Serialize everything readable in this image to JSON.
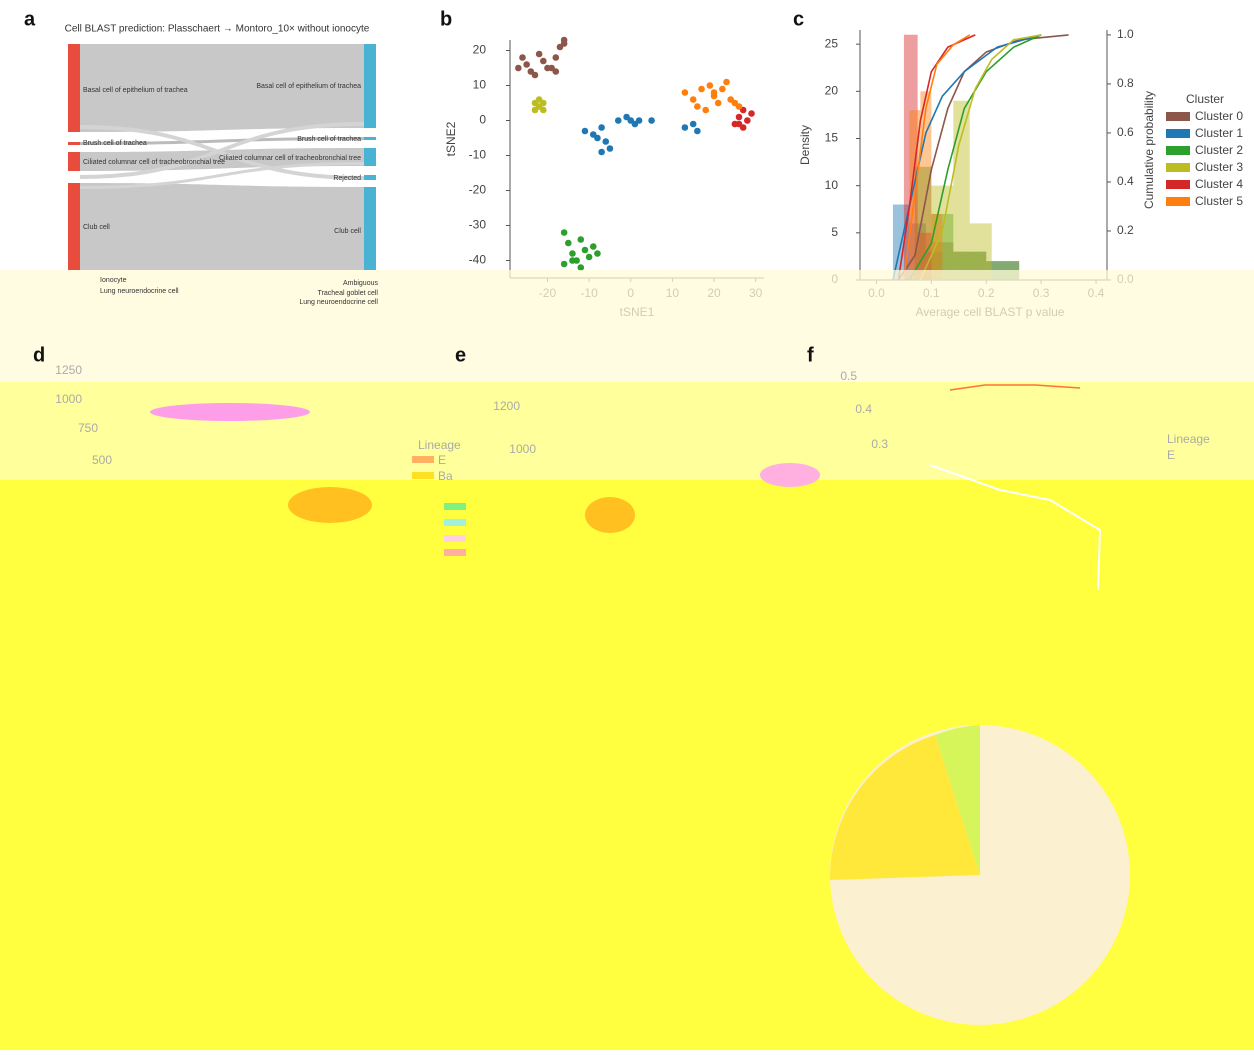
{
  "figure": {
    "panel_labels": [
      "a",
      "b",
      "c",
      "d",
      "e",
      "f"
    ]
  },
  "sankey": {
    "title": "Cell BLAST prediction: Plasschaert → Montoro_10× without ionocyte",
    "left_nodes": [
      "Basal cell of epithelium of trachea",
      "Brush cell of trachea",
      "Ciliated columnar cell of tracheobronchial tree",
      "Club cell"
    ],
    "right_nodes": [
      "Basal cell of epithelium of trachea",
      "Brush cell of trachea",
      "Ciliated columnar cell of tracheobronchial tree",
      "Rejected",
      "Club cell"
    ],
    "left_extra": [
      "Ionocyte",
      "Lung neuroendocrine cell"
    ],
    "right_extra": [
      "Ambiguous",
      "Tracheal goblet cell",
      "Lung neuroendocrine cell"
    ]
  },
  "chart_data": [
    {
      "type": "scatter",
      "xlabel": "tSNE1",
      "ylabel": "tSNE2",
      "xlim": [
        -29,
        32
      ],
      "ylim": [
        -45,
        23
      ],
      "xticks": [
        -20,
        -10,
        0,
        10,
        20,
        30
      ],
      "yticks": [
        -40,
        -30,
        -20,
        -10,
        0,
        10,
        20
      ],
      "series": [
        {
          "color": "#8c564b",
          "x": [
            -27,
            -25,
            -24,
            -26,
            -22,
            -21,
            -19,
            -18,
            -17,
            -16,
            -16,
            -20,
            -23,
            -18
          ],
          "values": [
            15,
            16,
            14,
            18,
            19,
            17,
            15,
            14,
            21,
            23,
            22,
            15,
            13,
            18
          ]
        },
        {
          "color": "#1f77b4",
          "x": [
            -11,
            -9,
            -7,
            -6,
            -5,
            -7,
            -8,
            -3,
            -1,
            0,
            2,
            1,
            13,
            15,
            16,
            5
          ],
          "values": [
            -3,
            -4,
            -2,
            -6,
            -8,
            -9,
            -5,
            0,
            1,
            0,
            0,
            -1,
            -2,
            -1,
            -3,
            0
          ]
        },
        {
          "color": "#2ca02c",
          "x": [
            -16,
            -15,
            -14,
            -13,
            -12,
            -11,
            -10,
            -9,
            -8,
            -16,
            -12,
            -14
          ],
          "values": [
            -32,
            -35,
            -38,
            -40,
            -42,
            -37,
            -39,
            -36,
            -38,
            -41,
            -34,
            -40
          ]
        },
        {
          "color": "#bcbd22",
          "x": [
            -23,
            -22,
            -21,
            -22,
            -23,
            -21
          ],
          "values": [
            5,
            4,
            3,
            6,
            3,
            5
          ]
        },
        {
          "color": "#d62728",
          "x": [
            25,
            26,
            27,
            28,
            29,
            27,
            26
          ],
          "values": [
            -1,
            1,
            -2,
            0,
            2,
            3,
            -1
          ]
        },
        {
          "color": "#ff7f0e",
          "x": [
            13,
            15,
            17,
            19,
            20,
            21,
            22,
            23,
            24,
            25,
            18,
            16,
            20,
            26
          ],
          "values": [
            8,
            6,
            9,
            10,
            7,
            5,
            9,
            11,
            6,
            5,
            3,
            4,
            8,
            4
          ]
        }
      ]
    },
    {
      "type": "hist_cdf",
      "xlabel": "Average cell BLAST p value",
      "ylabel": "Density",
      "y2label": "Cumulative probability",
      "legend_title": "Cluster",
      "xlim": [
        -0.03,
        0.42
      ],
      "ylim": [
        0,
        26.5
      ],
      "y2lim": [
        0,
        1.02
      ],
      "xticks": [
        {
          "value": 0,
          "label": "0.0"
        },
        0.1,
        0.2,
        0.3,
        0.4
      ],
      "yticks": [
        0,
        5,
        10,
        15,
        20,
        25
      ],
      "y2ticks": [
        {
          "value": 0,
          "label": "0.0"
        },
        0.2,
        0.4,
        0.6,
        0.8,
        {
          "value": 1,
          "label": "1.0"
        }
      ],
      "series": [
        {
          "name": "Cluster 0",
          "color": "#8c564b",
          "x": [
            0.04,
            0.07,
            0.1,
            0.13,
            0.16,
            0.2,
            0.26,
            0.35
          ],
          "values": [
            0,
            0.1,
            0.45,
            0.7,
            0.85,
            0.93,
            0.98,
            1.0
          ],
          "axis": "y2",
          "hist_bins": [
            0.1,
            0.14,
            0.2,
            0.26
          ],
          "hist_counts": [
            4,
            3,
            2
          ]
        },
        {
          "name": "Cluster 1",
          "color": "#1f77b4",
          "x": [
            0.03,
            0.06,
            0.09,
            0.12,
            0.16,
            0.22,
            0.3
          ],
          "values": [
            0,
            0.3,
            0.6,
            0.75,
            0.85,
            0.95,
            1.0
          ],
          "axis": "y2",
          "hist_bins": [
            0.03,
            0.06,
            0.09,
            0.12
          ],
          "hist_counts": [
            8,
            6,
            3
          ]
        },
        {
          "name": "Cluster 2",
          "color": "#2ca02c",
          "x": [
            0.06,
            0.1,
            0.13,
            0.16,
            0.2,
            0.25,
            0.3
          ],
          "values": [
            0,
            0.15,
            0.45,
            0.7,
            0.85,
            0.95,
            1.0
          ],
          "axis": "y2",
          "hist_bins": [
            0.07,
            0.1,
            0.14,
            0.2,
            0.26
          ],
          "hist_counts": [
            12,
            7,
            3,
            2
          ]
        },
        {
          "name": "Cluster 3",
          "color": "#bcbd22",
          "x": [
            0.08,
            0.12,
            0.15,
            0.18,
            0.21,
            0.25,
            0.3
          ],
          "values": [
            0,
            0.2,
            0.55,
            0.78,
            0.9,
            0.98,
            1.0
          ],
          "axis": "y2",
          "hist_bins": [
            0.1,
            0.14,
            0.17,
            0.21
          ],
          "hist_counts": [
            10,
            19,
            6
          ]
        },
        {
          "name": "Cluster 4",
          "color": "#d62728",
          "x": [
            0.04,
            0.06,
            0.08,
            0.1,
            0.13,
            0.18
          ],
          "values": [
            0,
            0.3,
            0.65,
            0.85,
            0.95,
            1.0
          ],
          "axis": "y2",
          "hist_bins": [
            0.05,
            0.075,
            0.1
          ],
          "hist_counts": [
            26,
            5
          ]
        },
        {
          "name": "Cluster 5",
          "color": "#ff7f0e",
          "x": [
            0.05,
            0.07,
            0.09,
            0.11,
            0.14,
            0.17
          ],
          "values": [
            0,
            0.35,
            0.7,
            0.88,
            0.96,
            1.0
          ],
          "axis": "y2",
          "hist_bins": [
            0.06,
            0.08,
            0.1,
            0.12
          ],
          "hist_counts": [
            18,
            20,
            7
          ]
        }
      ]
    }
  ],
  "lower_panels": {
    "d": {
      "ytick_labels": [
        "1250",
        "1000",
        "750",
        "500"
      ],
      "legend": [
        "Lineage",
        "E",
        "Ba"
      ]
    },
    "e": {
      "ytick_labels": [
        "1200",
        "1000"
      ]
    },
    "f": {
      "ytick_labels": [
        "0.5",
        "0.4",
        "0.3"
      ],
      "legend": [
        "Lineage",
        "E"
      ]
    }
  }
}
